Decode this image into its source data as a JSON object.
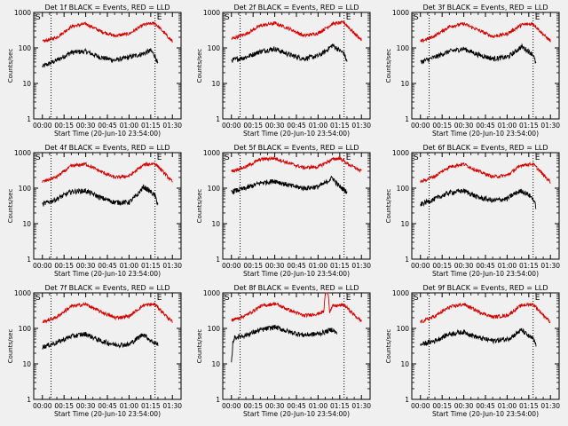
{
  "figure": {
    "background": "#f0f0f0",
    "axis_color": "#000000",
    "events_color": "#000000",
    "lld_color": "#d40000",
    "ylabel": "Counts/sec",
    "xlabel": "Start Time (20-Jun-10 23:54:00)",
    "corner_mark_left": "S",
    "corner_mark_right": "E"
  },
  "chart_data": [
    {
      "type": "line",
      "title": "Det 1f BLACK = Events, RED = LLD",
      "xlabel": "Start Time (20-Jun-10 23:54:00)",
      "ylabel": "Counts/sec",
      "x_tick_labels": [
        "00:00",
        "00:15",
        "00:30",
        "00:45",
        "01:00",
        "01:15",
        "01:30"
      ],
      "y_tick_labels": [
        "1",
        "10",
        "100",
        "1000"
      ],
      "xlim_minutes": [
        -6,
        96
      ],
      "ylim": [
        1,
        1000
      ],
      "y_scale": "log",
      "vertical_dotted_lines_minutes": [
        6,
        78
      ],
      "series": [
        {
          "role": "events",
          "x_minutes": [
            0,
            10,
            20,
            30,
            40,
            50,
            60,
            70,
            75,
            78,
            80
          ],
          "values": [
            30,
            45,
            75,
            80,
            55,
            45,
            55,
            70,
            85,
            60,
            35
          ]
        },
        {
          "role": "lld",
          "x_minutes": [
            0,
            10,
            20,
            30,
            40,
            50,
            60,
            70,
            78,
            85,
            90
          ],
          "values": [
            150,
            200,
            400,
            480,
            300,
            220,
            250,
            450,
            500,
            250,
            150
          ]
        }
      ]
    },
    {
      "type": "line",
      "title": "Det 2f BLACK = Events, RED = LLD",
      "xlabel": "Start Time (20-Jun-10 23:54:00)",
      "ylabel": "Counts/sec",
      "x_tick_labels": [
        "00:00",
        "00:15",
        "00:30",
        "00:45",
        "01:00",
        "01:15",
        "01:30"
      ],
      "y_tick_labels": [
        "1",
        "10",
        "100",
        "1000"
      ],
      "xlim_minutes": [
        -6,
        96
      ],
      "ylim": [
        1,
        1000
      ],
      "y_scale": "log",
      "vertical_dotted_lines_minutes": [
        6,
        78
      ],
      "series": [
        {
          "role": "events",
          "x_minutes": [
            0,
            10,
            20,
            30,
            40,
            50,
            60,
            65,
            70,
            75,
            78,
            80
          ],
          "values": [
            45,
            55,
            80,
            95,
            65,
            50,
            60,
            80,
            120,
            85,
            70,
            40
          ]
        },
        {
          "role": "lld",
          "x_minutes": [
            0,
            10,
            20,
            30,
            40,
            50,
            60,
            70,
            78,
            85,
            90
          ],
          "values": [
            180,
            250,
            420,
            500,
            350,
            220,
            260,
            480,
            520,
            260,
            170
          ]
        }
      ]
    },
    {
      "type": "line",
      "title": "Det 3f BLACK = Events, RED = LLD",
      "xlabel": "Start Time (20-Jun-10 23:54:00)",
      "ylabel": "Counts/sec",
      "x_tick_labels": [
        "00:00",
        "00:15",
        "00:30",
        "00:45",
        "01:00",
        "01:15",
        "01:30"
      ],
      "y_tick_labels": [
        "1",
        "10",
        "100",
        "1000"
      ],
      "xlim_minutes": [
        -6,
        96
      ],
      "ylim": [
        1,
        1000
      ],
      "y_scale": "log",
      "vertical_dotted_lines_minutes": [
        6,
        78
      ],
      "series": [
        {
          "role": "events",
          "x_minutes": [
            0,
            10,
            20,
            30,
            40,
            50,
            60,
            65,
            70,
            75,
            78,
            80
          ],
          "values": [
            40,
            55,
            80,
            95,
            65,
            50,
            55,
            75,
            110,
            80,
            65,
            35
          ]
        },
        {
          "role": "lld",
          "x_minutes": [
            0,
            10,
            20,
            30,
            40,
            50,
            60,
            70,
            78,
            85,
            90
          ],
          "values": [
            150,
            220,
            400,
            480,
            320,
            210,
            250,
            450,
            480,
            240,
            160
          ]
        }
      ]
    },
    {
      "type": "line",
      "title": "Det 4f BLACK = Events, RED = LLD",
      "xlabel": "Start Time (20-Jun-10 23:54:00)",
      "ylabel": "Counts/sec",
      "x_tick_labels": [
        "00:00",
        "00:15",
        "00:30",
        "00:45",
        "01:00",
        "01:15",
        "01:30"
      ],
      "y_tick_labels": [
        "1",
        "10",
        "100",
        "1000"
      ],
      "xlim_minutes": [
        -6,
        96
      ],
      "ylim": [
        1,
        1000
      ],
      "y_scale": "log",
      "vertical_dotted_lines_minutes": [
        6,
        78
      ],
      "series": [
        {
          "role": "events",
          "x_minutes": [
            0,
            10,
            20,
            30,
            40,
            50,
            60,
            65,
            70,
            75,
            78,
            80
          ],
          "values": [
            35,
            50,
            80,
            85,
            55,
            40,
            40,
            60,
            110,
            80,
            60,
            35
          ]
        },
        {
          "role": "lld",
          "x_minutes": [
            0,
            10,
            20,
            30,
            40,
            50,
            60,
            70,
            78,
            85,
            90
          ],
          "values": [
            150,
            210,
            420,
            480,
            300,
            200,
            220,
            450,
            500,
            250,
            150
          ]
        }
      ]
    },
    {
      "type": "line",
      "title": "Det 5f BLACK = Events, RED = LLD",
      "xlabel": "Start Time (20-Jun-10 23:54:00)",
      "ylabel": "Counts/sec",
      "x_tick_labels": [
        "00:00",
        "00:15",
        "00:30",
        "00:45",
        "01:00",
        "01:15",
        "01:30"
      ],
      "y_tick_labels": [
        "1",
        "10",
        "100",
        "1000"
      ],
      "xlim_minutes": [
        -6,
        96
      ],
      "ylim": [
        1,
        1000
      ],
      "y_scale": "log",
      "vertical_dotted_lines_minutes": [
        6,
        78
      ],
      "series": [
        {
          "role": "events",
          "x_minutes": [
            0,
            10,
            20,
            30,
            40,
            50,
            60,
            65,
            70,
            72,
            75,
            80
          ],
          "values": [
            80,
            100,
            140,
            160,
            120,
            100,
            110,
            140,
            200,
            150,
            110,
            80
          ]
        },
        {
          "role": "lld",
          "x_minutes": [
            0,
            10,
            20,
            30,
            40,
            50,
            60,
            70,
            75,
            80,
            90
          ],
          "values": [
            300,
            400,
            650,
            700,
            500,
            380,
            400,
            650,
            700,
            500,
            300
          ]
        }
      ]
    },
    {
      "type": "line",
      "title": "Det 6f BLACK = Events, RED = LLD",
      "xlabel": "Start Time (20-Jun-10 23:54:00)",
      "ylabel": "Counts/sec",
      "x_tick_labels": [
        "00:00",
        "00:15",
        "00:30",
        "00:45",
        "01:00",
        "01:15",
        "01:30"
      ],
      "y_tick_labels": [
        "1",
        "10",
        "100",
        "1000"
      ],
      "xlim_minutes": [
        -6,
        96
      ],
      "ylim": [
        1,
        1000
      ],
      "y_scale": "log",
      "vertical_dotted_lines_minutes": [
        6,
        78
      ],
      "series": [
        {
          "role": "events",
          "x_minutes": [
            0,
            10,
            20,
            30,
            40,
            50,
            60,
            65,
            70,
            75,
            78,
            80
          ],
          "values": [
            35,
            50,
            75,
            85,
            55,
            45,
            50,
            70,
            85,
            65,
            50,
            30
          ]
        },
        {
          "role": "lld",
          "x_minutes": [
            0,
            10,
            20,
            30,
            40,
            50,
            60,
            70,
            78,
            85,
            90
          ],
          "values": [
            150,
            220,
            400,
            480,
            300,
            210,
            230,
            450,
            480,
            240,
            150
          ]
        }
      ]
    },
    {
      "type": "line",
      "title": "Det 7f BLACK = Events, RED = LLD",
      "xlabel": "Start Time (20-Jun-10 23:54:00)",
      "ylabel": "Counts/sec",
      "x_tick_labels": [
        "00:00",
        "00:15",
        "00:30",
        "00:45",
        "01:00",
        "01:15",
        "01:30"
      ],
      "y_tick_labels": [
        "1",
        "10",
        "100",
        "1000"
      ],
      "xlim_minutes": [
        -6,
        96
      ],
      "ylim": [
        1,
        1000
      ],
      "y_scale": "log",
      "vertical_dotted_lines_minutes": [
        6,
        78
      ],
      "series": [
        {
          "role": "events",
          "x_minutes": [
            0,
            10,
            20,
            30,
            40,
            50,
            60,
            65,
            70,
            75,
            80
          ],
          "values": [
            30,
            40,
            60,
            70,
            45,
            35,
            35,
            50,
            70,
            45,
            35
          ]
        },
        {
          "role": "lld",
          "x_minutes": [
            0,
            10,
            20,
            30,
            40,
            50,
            60,
            70,
            78,
            85,
            90
          ],
          "values": [
            150,
            210,
            420,
            480,
            300,
            200,
            220,
            450,
            480,
            240,
            150
          ]
        }
      ]
    },
    {
      "type": "line",
      "title": "Det 8f BLACK = Events, RED = LLD",
      "xlabel": "Start Time (20-Jun-10 23:54:00)",
      "ylabel": "Counts/sec",
      "x_tick_labels": [
        "00:00",
        "00:15",
        "00:30",
        "00:45",
        "01:00",
        "01:15",
        "01:30"
      ],
      "y_tick_labels": [
        "1",
        "10",
        "100",
        "1000"
      ],
      "xlim_minutes": [
        -6,
        96
      ],
      "ylim": [
        1,
        1000
      ],
      "y_scale": "log",
      "vertical_dotted_lines_minutes": [
        6,
        78
      ],
      "series": [
        {
          "role": "events",
          "x_minutes": [
            0,
            1,
            2,
            10,
            20,
            30,
            40,
            50,
            60,
            65,
            70,
            73
          ],
          "values": [
            10,
            40,
            55,
            65,
            90,
            110,
            80,
            65,
            70,
            80,
            95,
            70
          ]
        },
        {
          "role": "lld",
          "x_minutes": [
            0,
            10,
            20,
            30,
            40,
            50,
            60,
            64,
            65,
            67,
            68,
            70,
            78,
            85,
            90
          ],
          "values": [
            170,
            230,
            420,
            500,
            330,
            230,
            260,
            300,
            1000,
            1000,
            300,
            420,
            460,
            240,
            160
          ]
        }
      ]
    },
    {
      "type": "line",
      "title": "Det 9f BLACK = Events, RED = LLD",
      "xlabel": "Start Time (20-Jun-10 23:54:00)",
      "ylabel": "Counts/sec",
      "x_tick_labels": [
        "00:00",
        "00:15",
        "00:30",
        "00:45",
        "01:00",
        "01:15",
        "01:30"
      ],
      "y_tick_labels": [
        "1",
        "10",
        "100",
        "1000"
      ],
      "xlim_minutes": [
        -6,
        96
      ],
      "ylim": [
        1,
        1000
      ],
      "y_scale": "log",
      "vertical_dotted_lines_minutes": [
        6,
        78
      ],
      "series": [
        {
          "role": "events",
          "x_minutes": [
            0,
            10,
            20,
            30,
            40,
            50,
            60,
            65,
            70,
            75,
            78,
            80
          ],
          "values": [
            35,
            45,
            70,
            80,
            55,
            45,
            50,
            65,
            90,
            60,
            50,
            35
          ]
        },
        {
          "role": "lld",
          "x_minutes": [
            0,
            10,
            20,
            30,
            40,
            50,
            60,
            70,
            78,
            85,
            90
          ],
          "values": [
            150,
            220,
            400,
            480,
            300,
            210,
            230,
            450,
            480,
            240,
            150
          ]
        }
      ]
    }
  ]
}
